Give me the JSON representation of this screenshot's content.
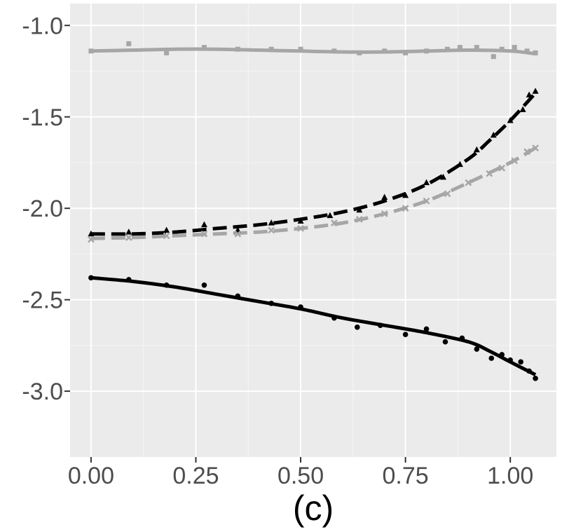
{
  "chart_data": {
    "type": "scatter",
    "title": "",
    "caption": "(c)",
    "xlabel": "",
    "ylabel": "",
    "xlim": [
      -0.05,
      1.11
    ],
    "ylim": [
      -3.36,
      -0.88
    ],
    "x_ticks": [
      0.0,
      0.25,
      0.5,
      0.75,
      1.0
    ],
    "x_tick_labels": [
      "0.00",
      "0.25",
      "0.50",
      "0.75",
      "1.00"
    ],
    "y_ticks": [
      -1.0,
      -1.5,
      -2.0,
      -2.5,
      -3.0
    ],
    "y_tick_labels": [
      "-1.0",
      "-1.5",
      "-2.0",
      "-2.5",
      "-3.0"
    ],
    "grid": true,
    "legend": "none",
    "series": [
      {
        "name": "grey-square",
        "color": "#a6a6a6",
        "marker": "square",
        "line_style": "solid",
        "points": [
          [
            0.0,
            -1.14
          ],
          [
            0.09,
            -1.1
          ],
          [
            0.18,
            -1.15
          ],
          [
            0.27,
            -1.12
          ],
          [
            0.35,
            -1.13
          ],
          [
            0.43,
            -1.13
          ],
          [
            0.5,
            -1.13
          ],
          [
            0.58,
            -1.14
          ],
          [
            0.64,
            -1.15
          ],
          [
            0.7,
            -1.14
          ],
          [
            0.75,
            -1.15
          ],
          [
            0.8,
            -1.14
          ],
          [
            0.85,
            -1.13
          ],
          [
            0.88,
            -1.12
          ],
          [
            0.92,
            -1.12
          ],
          [
            0.96,
            -1.17
          ],
          [
            0.98,
            -1.13
          ],
          [
            1.01,
            -1.12
          ],
          [
            1.04,
            -1.14
          ],
          [
            1.06,
            -1.15
          ]
        ],
        "fit": [
          [
            0.0,
            -1.14
          ],
          [
            0.1,
            -1.135
          ],
          [
            0.2,
            -1.13
          ],
          [
            0.3,
            -1.13
          ],
          [
            0.4,
            -1.135
          ],
          [
            0.5,
            -1.14
          ],
          [
            0.6,
            -1.145
          ],
          [
            0.7,
            -1.145
          ],
          [
            0.8,
            -1.14
          ],
          [
            0.9,
            -1.135
          ],
          [
            1.0,
            -1.14
          ],
          [
            1.06,
            -1.155
          ]
        ]
      },
      {
        "name": "black-triangle",
        "color": "#000000",
        "marker": "triangle",
        "line_style": "dashed",
        "points": [
          [
            0.0,
            -2.14
          ],
          [
            0.09,
            -2.13
          ],
          [
            0.18,
            -2.12
          ],
          [
            0.27,
            -2.09
          ],
          [
            0.35,
            -2.12
          ],
          [
            0.43,
            -2.08
          ],
          [
            0.5,
            -2.07
          ],
          [
            0.57,
            -2.04
          ],
          [
            0.64,
            -2.01
          ],
          [
            0.7,
            -1.94
          ],
          [
            0.75,
            -1.93
          ],
          [
            0.8,
            -1.86
          ],
          [
            0.84,
            -1.83
          ],
          [
            0.88,
            -1.76
          ],
          [
            0.92,
            -1.68
          ],
          [
            0.96,
            -1.6
          ],
          [
            1.0,
            -1.52
          ],
          [
            1.03,
            -1.46
          ],
          [
            1.045,
            -1.38
          ],
          [
            1.06,
            -1.36
          ]
        ],
        "fit": [
          [
            0.0,
            -2.14
          ],
          [
            0.1,
            -2.14
          ],
          [
            0.2,
            -2.13
          ],
          [
            0.3,
            -2.11
          ],
          [
            0.4,
            -2.09
          ],
          [
            0.5,
            -2.06
          ],
          [
            0.6,
            -2.02
          ],
          [
            0.7,
            -1.96
          ],
          [
            0.8,
            -1.87
          ],
          [
            0.9,
            -1.73
          ],
          [
            0.95,
            -1.63
          ],
          [
            1.0,
            -1.52
          ],
          [
            1.06,
            -1.37
          ]
        ]
      },
      {
        "name": "grey-x",
        "color": "#a6a6a6",
        "marker": "x",
        "line_style": "dashed",
        "points": [
          [
            0.0,
            -2.17
          ],
          [
            0.09,
            -2.16
          ],
          [
            0.18,
            -2.15
          ],
          [
            0.27,
            -2.14
          ],
          [
            0.35,
            -2.14
          ],
          [
            0.43,
            -2.12
          ],
          [
            0.5,
            -2.11
          ],
          [
            0.58,
            -2.08
          ],
          [
            0.64,
            -2.06
          ],
          [
            0.7,
            -2.03
          ],
          [
            0.75,
            -2.0
          ],
          [
            0.8,
            -1.96
          ],
          [
            0.85,
            -1.92
          ],
          [
            0.9,
            -1.86
          ],
          [
            0.95,
            -1.81
          ],
          [
            0.98,
            -1.78
          ],
          [
            1.01,
            -1.74
          ],
          [
            1.04,
            -1.69
          ],
          [
            1.06,
            -1.67
          ]
        ],
        "fit": [
          [
            0.0,
            -2.165
          ],
          [
            0.1,
            -2.16
          ],
          [
            0.2,
            -2.15
          ],
          [
            0.3,
            -2.14
          ],
          [
            0.4,
            -2.13
          ],
          [
            0.5,
            -2.11
          ],
          [
            0.6,
            -2.08
          ],
          [
            0.7,
            -2.03
          ],
          [
            0.8,
            -1.96
          ],
          [
            0.9,
            -1.86
          ],
          [
            1.0,
            -1.75
          ],
          [
            1.06,
            -1.67
          ]
        ]
      },
      {
        "name": "black-circle",
        "color": "#000000",
        "marker": "circle",
        "line_style": "solid",
        "points": [
          [
            0.0,
            -2.38
          ],
          [
            0.09,
            -2.39
          ],
          [
            0.18,
            -2.42
          ],
          [
            0.27,
            -2.42
          ],
          [
            0.35,
            -2.48
          ],
          [
            0.43,
            -2.52
          ],
          [
            0.5,
            -2.54
          ],
          [
            0.58,
            -2.6
          ],
          [
            0.635,
            -2.65
          ],
          [
            0.69,
            -2.64
          ],
          [
            0.75,
            -2.69
          ],
          [
            0.8,
            -2.66
          ],
          [
            0.845,
            -2.73
          ],
          [
            0.885,
            -2.71
          ],
          [
            0.92,
            -2.77
          ],
          [
            0.955,
            -2.82
          ],
          [
            0.98,
            -2.8
          ],
          [
            1.0,
            -2.83
          ],
          [
            1.025,
            -2.84
          ],
          [
            1.045,
            -2.89
          ],
          [
            1.06,
            -2.93
          ]
        ],
        "fit": [
          [
            0.0,
            -2.38
          ],
          [
            0.1,
            -2.4
          ],
          [
            0.2,
            -2.43
          ],
          [
            0.3,
            -2.47
          ],
          [
            0.4,
            -2.51
          ],
          [
            0.5,
            -2.55
          ],
          [
            0.6,
            -2.6
          ],
          [
            0.7,
            -2.64
          ],
          [
            0.8,
            -2.68
          ],
          [
            0.9,
            -2.73
          ],
          [
            0.95,
            -2.78
          ],
          [
            1.0,
            -2.84
          ],
          [
            1.06,
            -2.91
          ]
        ]
      }
    ]
  }
}
